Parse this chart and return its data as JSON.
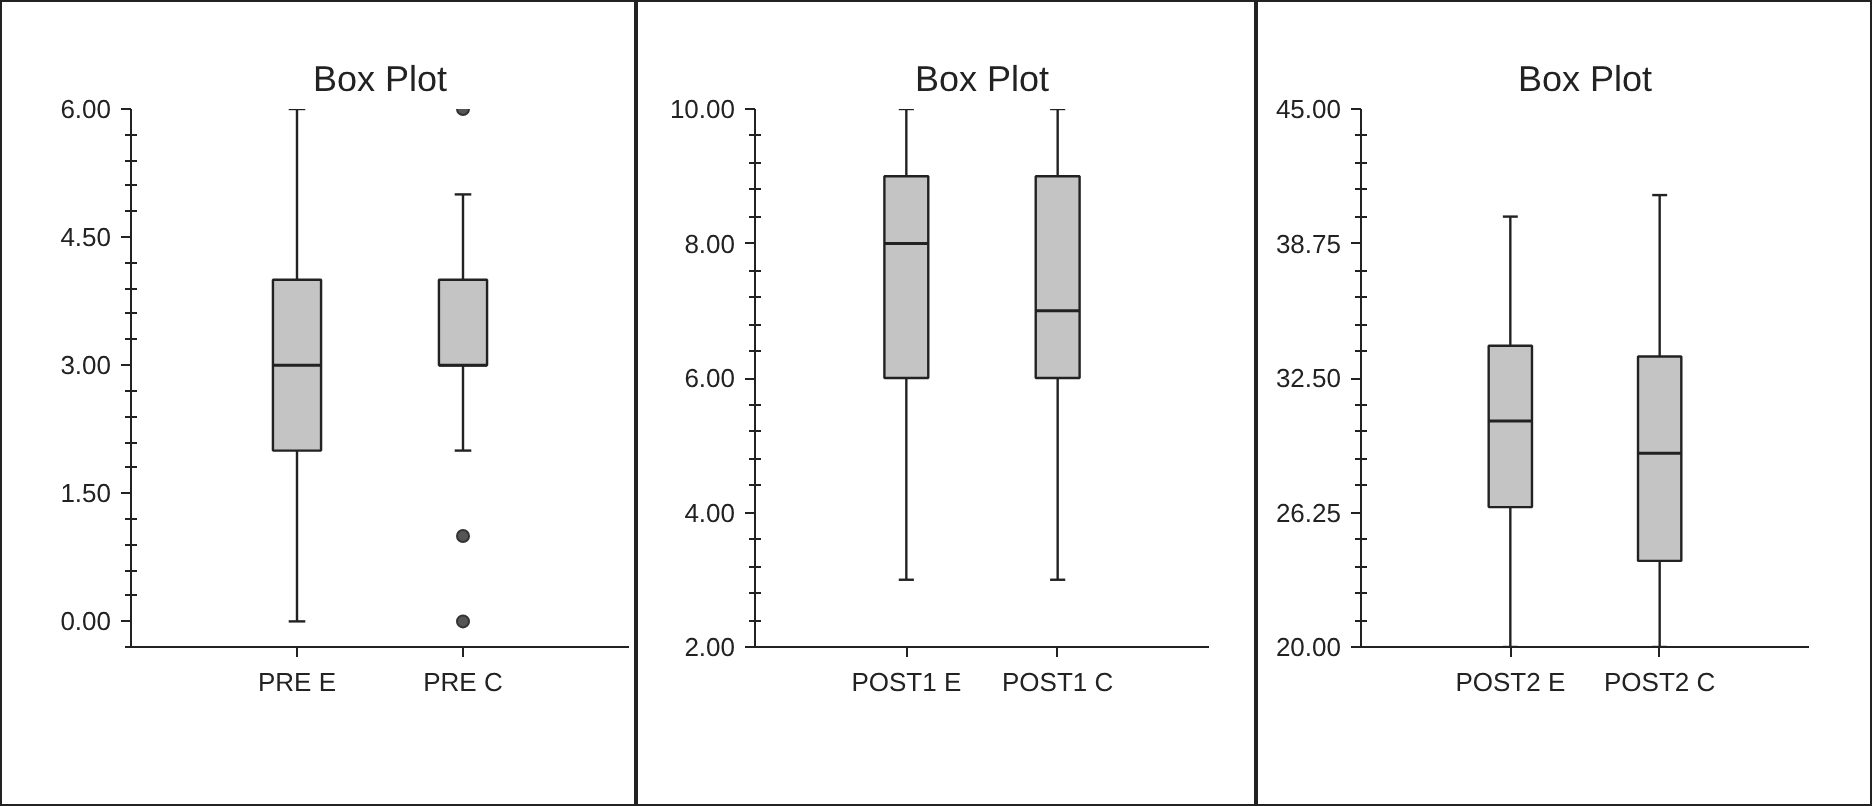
{
  "chart_data": [
    {
      "type": "box",
      "title": "Box Plot",
      "categories": [
        "PRE E",
        "PRE C"
      ],
      "color": "#c4c4c4",
      "grid": false,
      "boxes": [
        {
          "low": 0,
          "q1": 2,
          "median": 3,
          "q3": 4,
          "high": 6
        },
        {
          "low": 2,
          "q1": 3,
          "median": 3,
          "q3": 4,
          "high": 5,
          "outliers": [
            6,
            1,
            0
          ]
        }
      ],
      "ylim": [
        -0.3,
        6
      ],
      "yticks": [
        {
          "value": -0.3,
          "label": null
        },
        {
          "value": 0,
          "label": "0.00"
        },
        {
          "value": 0.3,
          "label": null
        },
        {
          "value": 0.6,
          "label": null
        },
        {
          "value": 0.9,
          "label": null
        },
        {
          "value": 1.2,
          "label": null
        },
        {
          "value": 1.5,
          "label": "1.50"
        },
        {
          "value": 1.8,
          "label": null
        },
        {
          "value": 2.1,
          "label": null
        },
        {
          "value": 2.4,
          "label": null
        },
        {
          "value": 2.7,
          "label": null
        },
        {
          "value": 3,
          "label": "3.00"
        },
        {
          "value": 3.3,
          "label": null
        },
        {
          "value": 3.6,
          "label": null
        },
        {
          "value": 3.9,
          "label": null
        },
        {
          "value": 4.2,
          "label": null
        },
        {
          "value": 4.5,
          "label": "4.50"
        },
        {
          "value": 4.8,
          "label": null
        },
        {
          "value": 5.1,
          "label": null
        },
        {
          "value": 5.4,
          "label": null
        },
        {
          "value": 5.7,
          "label": null
        },
        {
          "value": 6,
          "label": "6.00"
        }
      ]
    },
    {
      "type": "box",
      "title": "Box Plot",
      "categories": [
        "POST1 E",
        "POST1 C"
      ],
      "color": "#c4c4c4",
      "grid": false,
      "boxes": [
        {
          "low": 3,
          "q1": 6,
          "median": 8,
          "q3": 9,
          "high": 10
        },
        {
          "low": 3,
          "q1": 6,
          "median": 7,
          "q3": 9,
          "high": 10
        }
      ],
      "ylim": [
        2,
        10
      ],
      "yticks": [
        {
          "value": 2,
          "label": "2.00"
        },
        {
          "value": 2.4,
          "label": null
        },
        {
          "value": 2.8,
          "label": null
        },
        {
          "value": 3.2,
          "label": null
        },
        {
          "value": 3.6,
          "label": null
        },
        {
          "value": 4,
          "label": "4.00"
        },
        {
          "value": 4.4,
          "label": null
        },
        {
          "value": 4.8,
          "label": null
        },
        {
          "value": 5.2,
          "label": null
        },
        {
          "value": 5.6,
          "label": null
        },
        {
          "value": 6,
          "label": "6.00"
        },
        {
          "value": 6.4,
          "label": null
        },
        {
          "value": 6.8,
          "label": null
        },
        {
          "value": 7.2,
          "label": null
        },
        {
          "value": 7.6,
          "label": null
        },
        {
          "value": 8,
          "label": "8.00"
        },
        {
          "value": 8.4,
          "label": null
        },
        {
          "value": 8.8,
          "label": null
        },
        {
          "value": 9.2,
          "label": null
        },
        {
          "value": 9.6,
          "label": null
        },
        {
          "value": 10,
          "label": "10.00"
        }
      ]
    },
    {
      "type": "box",
      "title": "Box Plot",
      "categories": [
        "POST2 E",
        "POST2 C"
      ],
      "color": "#c4c4c4",
      "grid": false,
      "boxes": [
        {
          "low": 20,
          "q1": 26.5,
          "median": 30.5,
          "q3": 34,
          "high": 40
        },
        {
          "low": 20,
          "q1": 24,
          "median": 29,
          "q3": 33.5,
          "high": 41
        }
      ],
      "ylim": [
        20,
        45
      ],
      "yticks": [
        {
          "value": 20,
          "label": "20.00"
        },
        {
          "value": 21.25,
          "label": null
        },
        {
          "value": 22.5,
          "label": null
        },
        {
          "value": 23.75,
          "label": null
        },
        {
          "value": 25,
          "label": null
        },
        {
          "value": 26.25,
          "label": "26.25"
        },
        {
          "value": 27.5,
          "label": null
        },
        {
          "value": 28.75,
          "label": null
        },
        {
          "value": 30,
          "label": null
        },
        {
          "value": 31.25,
          "label": null
        },
        {
          "value": 32.5,
          "label": "32.50"
        },
        {
          "value": 33.75,
          "label": null
        },
        {
          "value": 35,
          "label": null
        },
        {
          "value": 36.25,
          "label": null
        },
        {
          "value": 37.5,
          "label": null
        },
        {
          "value": 38.75,
          "label": "38.75"
        },
        {
          "value": 40,
          "label": null
        },
        {
          "value": 41.25,
          "label": null
        },
        {
          "value": 42.5,
          "label": null
        },
        {
          "value": 43.75,
          "label": null
        },
        {
          "value": 45,
          "label": "45.00"
        }
      ]
    }
  ]
}
